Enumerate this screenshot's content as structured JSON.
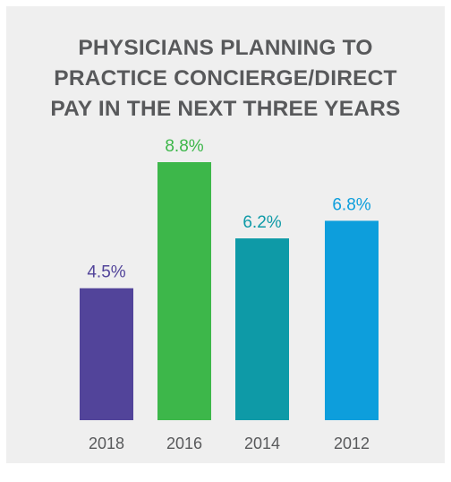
{
  "chart_data": {
    "type": "bar",
    "title_lines": [
      "PHYSICIANS PLANNING TO",
      "PRACTICE CONCIERGE/DIRECT",
      "PAY IN THE NEXT THREE YEARS"
    ],
    "categories": [
      "2018",
      "2016",
      "2014",
      "2012"
    ],
    "values": [
      4.5,
      8.8,
      6.2,
      6.8
    ],
    "value_labels": [
      "4.5%",
      "8.8%",
      "6.2%",
      "6.8%"
    ],
    "colors": [
      "#52449a",
      "#3db74a",
      "#0e9aa7",
      "#0d9edc"
    ],
    "ylim": [
      0,
      8.8
    ],
    "grid": false,
    "legend": "none"
  }
}
